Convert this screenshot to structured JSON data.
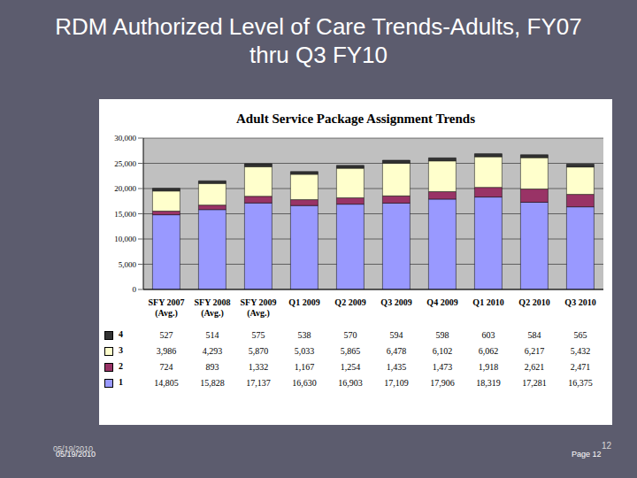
{
  "slide": {
    "title_lines": [
      "RDM Authorized Level of Care Trends-Adults, FY07",
      "thru Q3 FY10"
    ],
    "footer_date": "05/19/2010",
    "page_label": "Page 12",
    "page_number": "12"
  },
  "chart_data": {
    "type": "bar",
    "title": "Adult Service Package Assignment Trends",
    "stacked": true,
    "grid": true,
    "categories": [
      "SFY 2007 (Avg.)",
      "SFY 2008 (Avg.)",
      "SFY 2009 (Avg.)",
      "Q1 2009",
      "Q2 2009",
      "Q3 2009",
      "Q4 2009",
      "Q1 2010",
      "Q2 2010",
      "Q3 2010"
    ],
    "ylim": [
      0,
      30000
    ],
    "yticks": [
      0,
      {
        "value": 5000,
        "label": "5,000"
      },
      {
        "value": 10000,
        "label": "10,000"
      },
      {
        "value": 15000,
        "label": "15,000"
      },
      {
        "value": 20000,
        "label": "20,000"
      },
      {
        "value": 25000,
        "label": "25,000"
      },
      {
        "value": 30000,
        "label": "30,000"
      }
    ],
    "series": [
      {
        "name": "1",
        "color": "#9999ff",
        "values": [
          14805,
          15828,
          17137,
          16630,
          16903,
          17109,
          17906,
          18319,
          17281,
          16375
        ],
        "value_labels": [
          "14,805",
          "15,828",
          "17,137",
          "16,630",
          "16,903",
          "17,109",
          "17,906",
          "18,319",
          "17,281",
          "16,375"
        ]
      },
      {
        "name": "2",
        "color": "#993366",
        "values": [
          724,
          893,
          1332,
          1167,
          1254,
          1435,
          1473,
          1918,
          2621,
          2471
        ],
        "value_labels": [
          "724",
          "893",
          "1,332",
          "1,167",
          "1,254",
          "1,435",
          "1,473",
          "1,918",
          "2,621",
          "2,471"
        ]
      },
      {
        "name": "3",
        "color": "#ffffcc",
        "values": [
          3986,
          4293,
          5870,
          5033,
          5865,
          6478,
          6102,
          6062,
          6217,
          5432
        ],
        "value_labels": [
          "3,986",
          "4,293",
          "5,870",
          "5,033",
          "5,865",
          "6,478",
          "6,102",
          "6,062",
          "6,217",
          "5,432"
        ]
      },
      {
        "name": "4",
        "color": "#333333",
        "values": [
          527,
          514,
          575,
          538,
          570,
          594,
          598,
          603,
          584,
          565
        ],
        "value_labels": [
          "527",
          "514",
          "575",
          "538",
          "570",
          "594",
          "598",
          "603",
          "584",
          "565"
        ]
      }
    ]
  }
}
